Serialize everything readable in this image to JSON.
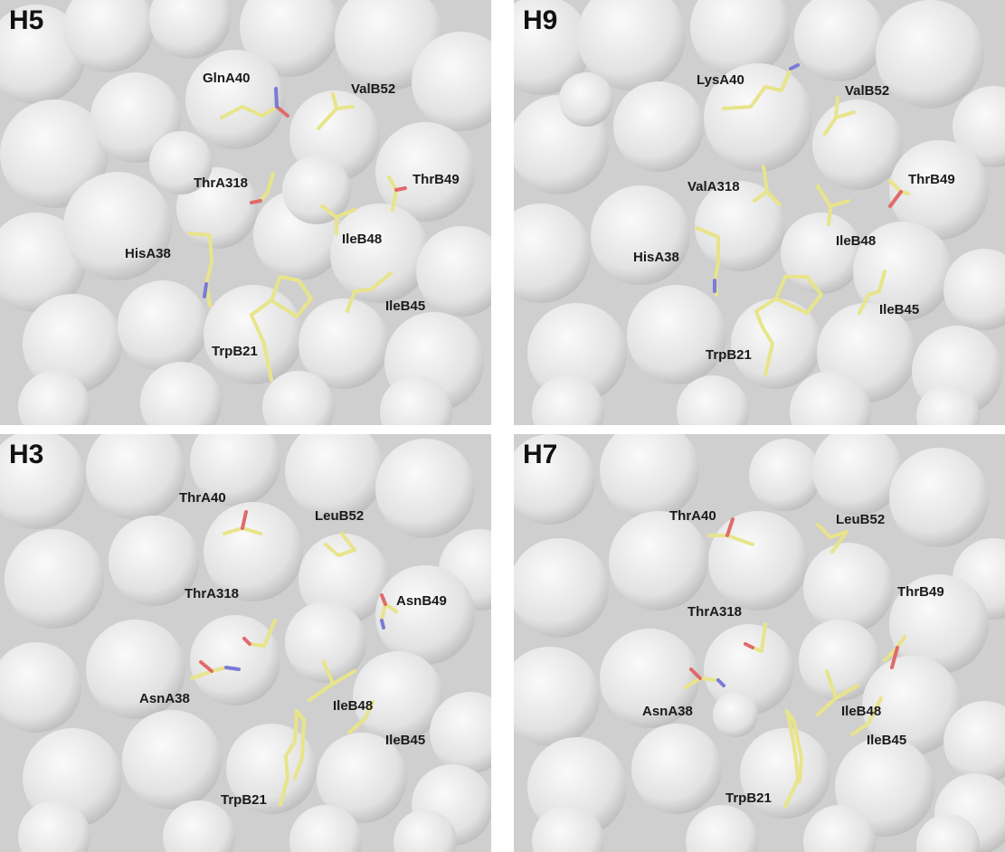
{
  "panels": {
    "h5": {
      "title": "H5",
      "labels": {
        "r1": "GlnA40",
        "r2": "ValB52",
        "r3": "ThrA318",
        "r4": "ThrB49",
        "r5": "IleB48",
        "r6": "HisA38",
        "r7": "IleB45",
        "r8": "TrpB21"
      }
    },
    "h9": {
      "title": "H9",
      "labels": {
        "r1": "LysA40",
        "r2": "ValB52",
        "r3": "ValA318",
        "r4": "ThrB49",
        "r5": "IleB48",
        "r6": "HisA38",
        "r7": "IleB45",
        "r8": "TrpB21"
      }
    },
    "h3": {
      "title": "H3",
      "labels": {
        "r1": "ThrA40",
        "r2": "LeuB52",
        "r3": "ThrA318",
        "r4": "AsnB49",
        "r5": "AsnA38",
        "r6": "IleB48",
        "r7": "IleB45",
        "r8": "TrpB21"
      }
    },
    "h7": {
      "title": "H7",
      "labels": {
        "r1": "ThrA40",
        "r2": "LeuB52",
        "r3": "ThrA318",
        "r4": "ThrB49",
        "r5": "AsnA38",
        "r6": "IleB48",
        "r7": "IleB45",
        "r8": "TrpB21"
      }
    }
  },
  "colors": {
    "surface_base": "#d4d4d4",
    "surface_light": "#f4f4f4",
    "stick_carbon": "#e8e48a",
    "stick_oxygen": "#e06a6a",
    "stick_nitrogen": "#7a7ad8",
    "label_text": "#1a1a1a"
  }
}
